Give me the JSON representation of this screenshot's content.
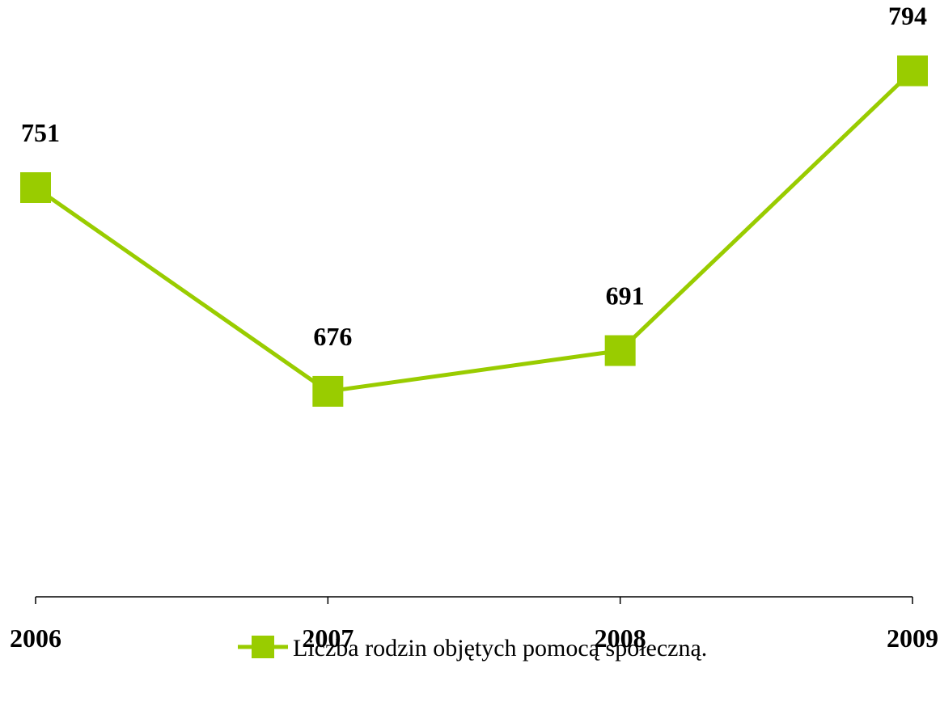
{
  "chart_data": {
    "type": "line",
    "categories": [
      "2006",
      "2007",
      "2008",
      "2009"
    ],
    "series": [
      {
        "name": "Liczba rodzin objętych pomocą społeczną.",
        "values": [
          751,
          676,
          691,
          794
        ],
        "color": "#99cc00",
        "marker": "square"
      }
    ],
    "data_labels": [
      "751",
      "676",
      "691",
      "794"
    ],
    "title": "",
    "xlabel": "",
    "ylabel": "",
    "ylim": [
      600,
      830
    ],
    "grid": false,
    "legend_position": "bottom"
  }
}
